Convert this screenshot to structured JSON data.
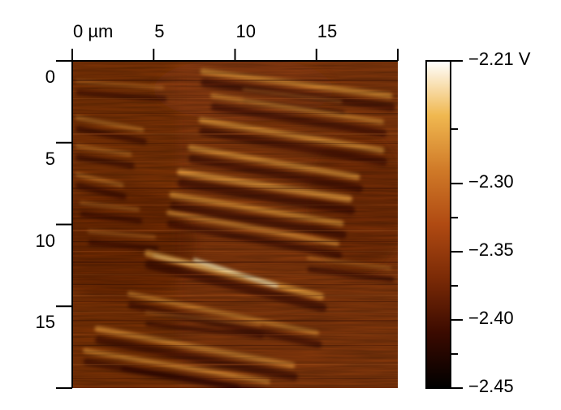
{
  "image": {
    "x_axis": {
      "ticks": [
        {
          "value": 0,
          "label": "0 µm"
        },
        {
          "value": 5,
          "label": "5"
        },
        {
          "value": 10,
          "label": "10"
        },
        {
          "value": 15,
          "label": "15"
        }
      ],
      "range": [
        0,
        20
      ],
      "unit": "µm"
    },
    "y_axis": {
      "ticks": [
        {
          "value": 0,
          "label": "0"
        },
        {
          "value": 5,
          "label": "5"
        },
        {
          "value": 10,
          "label": "10"
        },
        {
          "value": 15,
          "label": "15"
        }
      ],
      "range": [
        0,
        20
      ],
      "unit": "µm"
    },
    "colormap": "afmhot",
    "colormap_stops": [
      "#000000",
      "#3a0a00",
      "#7a2a06",
      "#b04a12",
      "#d07a28",
      "#f0b850",
      "#ffffff"
    ],
    "pattern": "diagonal bright stripes descending left-to-right on dark-orange background"
  },
  "colorbar": {
    "range": [
      -2.45,
      -2.21
    ],
    "ticks": [
      {
        "value": -2.21,
        "label": "−2.21 V"
      },
      {
        "value": -2.3,
        "label": "−2.30"
      },
      {
        "value": -2.35,
        "label": "−2.35"
      },
      {
        "value": -2.4,
        "label": "−2.40"
      },
      {
        "value": -2.45,
        "label": "−2.45"
      }
    ]
  }
}
